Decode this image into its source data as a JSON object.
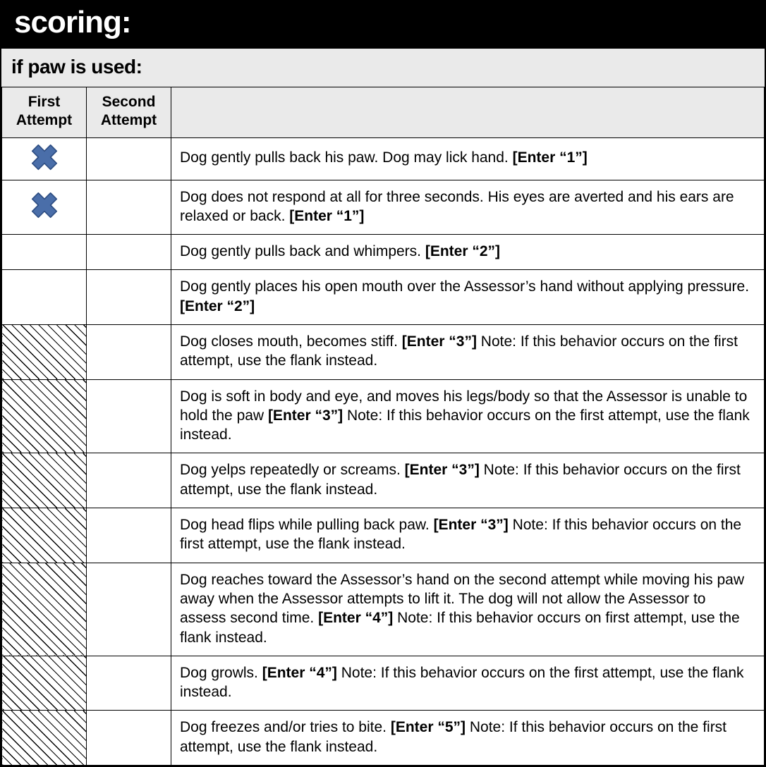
{
  "title": "scoring:",
  "subheader": "if paw is used:",
  "columns": {
    "first": "First Attempt",
    "second": "Second Attempt"
  },
  "x_mark": {
    "fill": "#4a6ea9",
    "stroke": "#2d4d82"
  },
  "rows": [
    {
      "first_mark": "x",
      "first_hatched": false,
      "desc_pre": "Dog gently pulls back his paw. Dog may lick hand. ",
      "desc_bold": "[Enter “1”]",
      "desc_post": ""
    },
    {
      "first_mark": "x",
      "first_hatched": false,
      "desc_pre": "Dog does not respond at all for three seconds. His eyes are averted and his ears are relaxed or back. ",
      "desc_bold": "[Enter “1”]",
      "desc_post": ""
    },
    {
      "first_mark": "",
      "first_hatched": false,
      "desc_pre": "Dog gently pulls back and whimpers. ",
      "desc_bold": "[Enter “2”]",
      "desc_post": ""
    },
    {
      "first_mark": "",
      "first_hatched": false,
      "desc_pre": "Dog gently places his open mouth over the Assessor’s hand without applying pressure. ",
      "desc_bold": "[Enter “2”]",
      "desc_post": ""
    },
    {
      "first_mark": "",
      "first_hatched": true,
      "desc_pre": "Dog closes mouth, becomes stiff. ",
      "desc_bold": "[Enter “3”]",
      "desc_post": " Note: If this behavior occurs on the first attempt, use the flank instead."
    },
    {
      "first_mark": "",
      "first_hatched": true,
      "desc_pre": "Dog is soft in body and eye, and moves his legs/body so that the Assessor is unable to hold the paw ",
      "desc_bold": "[Enter “3”]",
      "desc_post": " Note: If this behavior occurs on the first attempt, use the flank instead."
    },
    {
      "first_mark": "",
      "first_hatched": true,
      "desc_pre": "Dog yelps repeatedly or screams. ",
      "desc_bold": "[Enter “3”]",
      "desc_post": " Note: If this behavior occurs on the first attempt, use the flank instead."
    },
    {
      "first_mark": "",
      "first_hatched": true,
      "desc_pre": "Dog head flips while pulling back paw. ",
      "desc_bold": "[Enter “3”]",
      "desc_post": " Note: If this behavior occurs on the first attempt, use the flank instead."
    },
    {
      "first_mark": "",
      "first_hatched": true,
      "desc_pre": "Dog reaches toward the Assessor’s hand on the second attempt while moving his paw away when the Assessor attempts to lift it. The dog will not allow the Assessor to assess second time. ",
      "desc_bold": "[Enter “4”]",
      "desc_post": " Note: If this behavior occurs on first attempt, use the flank instead."
    },
    {
      "first_mark": "",
      "first_hatched": true,
      "desc_pre": "Dog growls. ",
      "desc_bold": "[Enter “4”]",
      "desc_post": " Note: If this behavior occurs on the first attempt, use the flank instead."
    },
    {
      "first_mark": "",
      "first_hatched": true,
      "desc_pre": "Dog freezes and/or tries to bite. ",
      "desc_bold": "[Enter “5”]",
      "desc_post": " Note: If this behavior occurs on the first attempt, use the flank instead."
    }
  ]
}
